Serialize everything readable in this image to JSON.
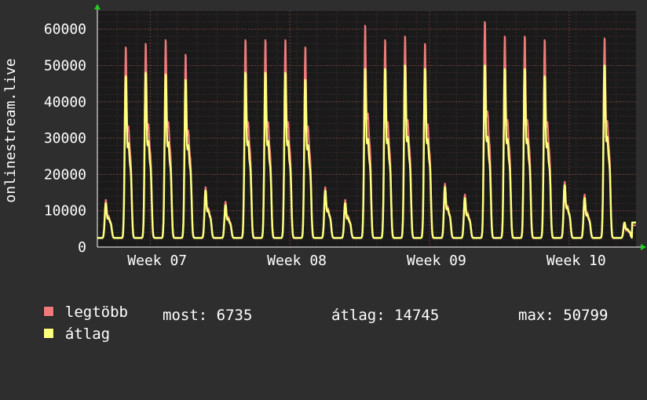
{
  "chart_data": {
    "type": "line",
    "title": "",
    "xlabel": "",
    "ylabel": "onlinestream.live",
    "ylim": [
      0,
      65000
    ],
    "yticks": [
      0,
      10000,
      20000,
      30000,
      40000,
      50000,
      60000
    ],
    "ytick_labels": [
      "0",
      "10000",
      "20000",
      "30000",
      "40000",
      "50000",
      "60000"
    ],
    "xtick_labels": [
      "Week 07",
      "Week 08",
      "Week 09",
      "Week 10"
    ],
    "grid": true,
    "legend_position": "bottom-left",
    "samples_per_day": 12,
    "series": [
      {
        "name": "legtöbb",
        "color": "#f07a7a",
        "daily_peaks": [
          13000,
          55000,
          56000,
          57000,
          53000,
          16500,
          12500,
          57000,
          57000,
          57000,
          55000,
          16500,
          13000,
          61000,
          57000,
          58000,
          56000,
          17500,
          14500,
          62000,
          58000,
          58000,
          57000,
          18000,
          14500,
          57500,
          6000
        ]
      },
      {
        "name": "átlag",
        "color": "#ffff80",
        "daily_peaks": [
          12000,
          47000,
          48000,
          47500,
          46000,
          15500,
          11500,
          48000,
          48000,
          48000,
          46000,
          15500,
          12000,
          49000,
          49000,
          50000,
          49000,
          16500,
          13500,
          50000,
          49000,
          49000,
          47000,
          17000,
          13500,
          50000,
          6735
        ]
      }
    ]
  },
  "legend": {
    "max_label": "legtöbb",
    "avg_label": "átlag",
    "max_color": "#f07a7a",
    "avg_color": "#ffff80",
    "stats": {
      "now": "most: 6735",
      "avg": "átlag: 14745",
      "max": "max: 50799"
    }
  }
}
